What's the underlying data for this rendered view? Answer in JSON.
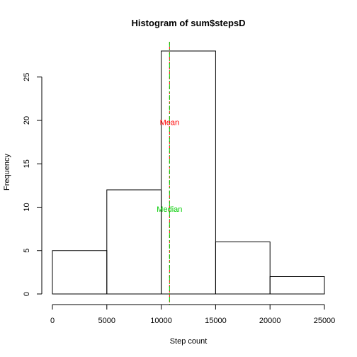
{
  "chart_data": {
    "type": "bar",
    "title": "Histogram of sum$stepsD",
    "xlabel": "Step count",
    "ylabel": "Frequency",
    "bins": [
      {
        "start": 0,
        "end": 5000,
        "count": 5
      },
      {
        "start": 5000,
        "end": 10000,
        "count": 12
      },
      {
        "start": 10000,
        "end": 15000,
        "count": 28
      },
      {
        "start": 15000,
        "end": 20000,
        "count": 6
      },
      {
        "start": 20000,
        "end": 25000,
        "count": 2
      }
    ],
    "xlim": [
      0,
      25000
    ],
    "ylim": [
      0,
      28
    ],
    "x_ticks": [
      "0",
      "5000",
      "10000",
      "15000",
      "20000",
      "25000"
    ],
    "y_ticks": [
      "0",
      "5",
      "10",
      "15",
      "20",
      "25"
    ],
    "grid": false,
    "annotations": [
      {
        "text": "Mean",
        "x": 10766,
        "y": 19.8,
        "color": "#ff0000"
      },
      {
        "text": "Median",
        "x": 10765,
        "y": 9.8,
        "color": "#00cc00"
      }
    ],
    "reference_lines": [
      {
        "name": "mean",
        "x": 10766,
        "color": "#ff0000",
        "style": "dashed"
      },
      {
        "name": "median",
        "x": 10765,
        "color": "#00cc00",
        "style": "dash-dot"
      }
    ]
  }
}
